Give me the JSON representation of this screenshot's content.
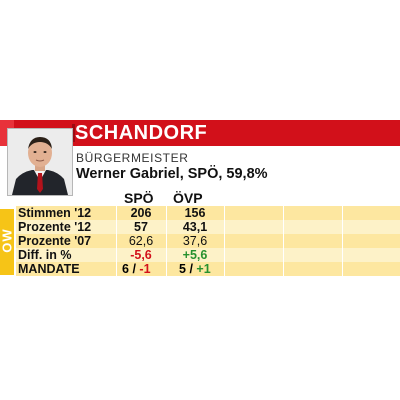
{
  "header": {
    "title": "SCHANDORF"
  },
  "subtitle": "BÜRGERMEISTER",
  "mayor_line": "Werner Gabriel, SPÖ, 59,8%",
  "side_tab": "OW",
  "columns": [
    "SPÖ",
    "ÖVP"
  ],
  "rows": [
    {
      "label": "Stimmen '12",
      "spoe": "206",
      "oevp": "156"
    },
    {
      "label": "Prozente '12",
      "spoe": "57",
      "oevp": "43,1"
    },
    {
      "label": "Prozente '07",
      "spoe": "62,6",
      "oevp": "37,6"
    },
    {
      "label": "Diff. in %",
      "spoe": "-5,6",
      "oevp": "+5,6"
    }
  ],
  "mandate": {
    "label": "MANDATE",
    "spoe_seats": "6",
    "spoe_sep": "/",
    "spoe_change": "-1",
    "oevp_seats": "5",
    "oevp_sep": "/",
    "oevp_change": "+1"
  },
  "colors": {
    "brand_red": "#d2101a",
    "yellow": "#f6c417",
    "negative": "#d2101a",
    "positive": "#27912f"
  }
}
